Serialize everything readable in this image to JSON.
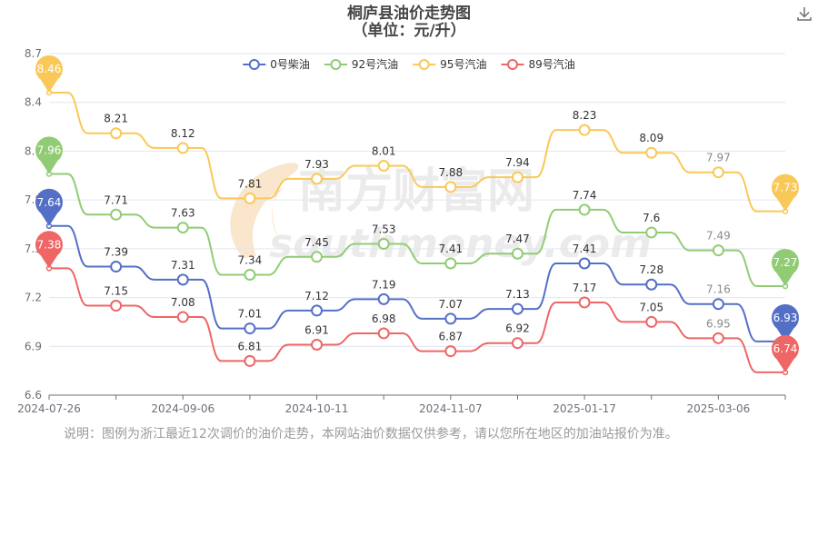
{
  "chart_data": {
    "type": "line",
    "title": "桐庐县油价走势图",
    "subtitle": "（单位：元/升）",
    "xlabel": "",
    "ylabel": "",
    "ylim": [
      6.6,
      8.7
    ],
    "yticks": [
      "6.6",
      "6.9",
      "7.2",
      "7.5",
      "7.8",
      "8.1",
      "8.4",
      "8.7"
    ],
    "x_tick_labels": [
      "2024-07-26",
      "2024-09-06",
      "2024-10-11",
      "2024-11-07",
      "2025-01-17",
      "2025-03-06"
    ],
    "x_tick_positions": [
      0,
      2,
      4,
      6,
      8,
      10
    ],
    "legend_position": "top-center",
    "grid": true,
    "series": [
      {
        "name": "0号柴油",
        "color": "#5470c6",
        "values": [
          7.64,
          7.39,
          7.31,
          7.01,
          7.12,
          7.19,
          7.07,
          7.13,
          7.41,
          7.28,
          7.16,
          6.93
        ],
        "labels": [
          "",
          "7.39",
          "7.31",
          "7.01",
          "7.12",
          "7.19",
          "7.07",
          "7.13",
          "7.41",
          "7.28",
          "7.16",
          ""
        ],
        "pins": [
          {
            "index": 0,
            "text": "7.64"
          },
          {
            "index": 11,
            "text": "6.93"
          }
        ]
      },
      {
        "name": "92号汽油",
        "color": "#91cc75",
        "values": [
          7.96,
          7.71,
          7.63,
          7.34,
          7.45,
          7.53,
          7.41,
          7.47,
          7.74,
          7.6,
          7.49,
          7.27
        ],
        "labels": [
          "",
          "7.71",
          "7.63",
          "7.34",
          "7.45",
          "7.53",
          "7.41",
          "7.47",
          "7.74",
          "7.6",
          "7.49",
          ""
        ],
        "pins": [
          {
            "index": 0,
            "text": "7.96"
          },
          {
            "index": 11,
            "text": "7.27"
          }
        ]
      },
      {
        "name": "95号汽油",
        "color": "#fac858",
        "values": [
          8.46,
          8.21,
          8.12,
          7.81,
          7.93,
          8.01,
          7.88,
          7.94,
          8.23,
          8.09,
          7.97,
          7.73
        ],
        "labels": [
          "",
          "8.21",
          "8.12",
          "7.81",
          "7.93",
          "8.01",
          "7.88",
          "7.94",
          "8.23",
          "8.09",
          "7.97",
          ""
        ],
        "pins": [
          {
            "index": 0,
            "text": "8.46"
          },
          {
            "index": 11,
            "text": "7.73"
          }
        ]
      },
      {
        "name": "89号汽油",
        "color": "#ee6666",
        "values": [
          7.38,
          7.15,
          7.08,
          6.81,
          6.91,
          6.98,
          6.87,
          6.92,
          7.17,
          7.05,
          6.95,
          6.74
        ],
        "labels": [
          "",
          "7.15",
          "7.08",
          "6.81",
          "6.91",
          "6.98",
          "6.87",
          "6.92",
          "7.17",
          "7.05",
          "6.95",
          ""
        ],
        "pins": [
          {
            "index": 0,
            "text": "7.38"
          },
          {
            "index": 11,
            "text": "6.74"
          }
        ]
      }
    ]
  },
  "watermark": {
    "line1": "南方财富网",
    "line2": "southmoney.com"
  },
  "footer": {
    "note": "说明：图例为浙江最近12次调价的油价走势，本网站油价数据仅供参考，请以您所在地区的加油站报价为准。"
  },
  "toolbar": {
    "download_icon": "download-icon"
  }
}
